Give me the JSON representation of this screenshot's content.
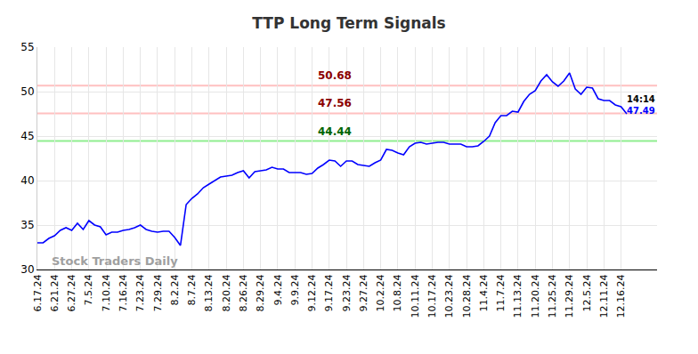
{
  "chart_data": {
    "type": "line",
    "title": "TTP Long Term Signals",
    "categories": [
      "6.17.24",
      null,
      null,
      "6.21.24",
      null,
      null,
      "6.27.24",
      null,
      null,
      "7.5.24",
      null,
      null,
      "7.10.24",
      null,
      null,
      "7.16.24",
      null,
      null,
      "7.23.24",
      null,
      null,
      "7.29.24",
      null,
      null,
      "8.2.24",
      null,
      null,
      "8.7.24",
      null,
      null,
      "8.13.24",
      null,
      null,
      "8.20.24",
      null,
      null,
      "8.26.24",
      null,
      null,
      "8.29.24",
      null,
      null,
      "9.4.24",
      null,
      null,
      "9.9.24",
      null,
      null,
      "9.12.24",
      null,
      null,
      "9.17.24",
      null,
      null,
      "9.23.24",
      null,
      null,
      "9.27.24",
      null,
      null,
      "10.2.24",
      null,
      null,
      "10.8.24",
      null,
      null,
      "10.11.24",
      null,
      null,
      "10.17.24",
      null,
      null,
      "10.23.24",
      null,
      null,
      "10.28.24",
      null,
      null,
      "11.4.24",
      null,
      null,
      "11.7.24",
      null,
      null,
      "11.13.24",
      null,
      null,
      "11.20.24",
      null,
      null,
      "11.25.24",
      null,
      null,
      "11.29.24",
      null,
      null,
      "12.5.24",
      null,
      null,
      "12.11.24",
      null,
      null,
      "12.16.24",
      null
    ],
    "values": [
      33.0,
      33.0,
      33.5,
      33.8,
      34.4,
      34.7,
      34.4,
      35.2,
      34.5,
      35.5,
      35.0,
      34.8,
      33.9,
      34.2,
      34.2,
      34.4,
      34.5,
      34.7,
      35.0,
      34.5,
      34.3,
      34.2,
      34.3,
      34.3,
      33.6,
      32.7,
      37.3,
      38.0,
      38.5,
      39.2,
      39.6,
      40.0,
      40.4,
      40.5,
      40.6,
      40.9,
      41.1,
      40.3,
      41.0,
      41.1,
      41.2,
      41.5,
      41.3,
      41.3,
      40.9,
      40.9,
      40.9,
      40.7,
      40.8,
      41.4,
      41.8,
      42.3,
      42.2,
      41.6,
      42.2,
      42.2,
      41.8,
      41.7,
      41.6,
      42.0,
      42.3,
      43.5,
      43.4,
      43.1,
      42.9,
      43.8,
      44.2,
      44.3,
      44.1,
      44.2,
      44.3,
      44.3,
      44.1,
      44.1,
      44.1,
      43.8,
      43.8,
      43.9,
      44.4,
      45.0,
      46.5,
      47.3,
      47.3,
      47.8,
      47.7,
      48.9,
      49.7,
      50.1,
      51.2,
      51.9,
      51.1,
      50.6,
      51.2,
      52.1,
      50.3,
      49.7,
      50.5,
      50.4,
      49.2,
      49.0,
      49.0,
      48.5,
      48.3,
      47.49
    ],
    "color": "#0000ff",
    "ylim": [
      30,
      55
    ],
    "yticks": [
      30,
      35,
      40,
      45,
      50,
      55
    ],
    "grid": true,
    "levels": [
      {
        "value": 50.68,
        "color": "#ffc0c0",
        "label_color": "#8b0000"
      },
      {
        "value": 47.56,
        "color": "#ffc0c0",
        "label_color": "#8b0000"
      },
      {
        "value": 44.44,
        "color": "#90ee90",
        "label_color": "#006400"
      }
    ],
    "last_time": "14:14",
    "watermark": "Stock Traders Daily"
  }
}
